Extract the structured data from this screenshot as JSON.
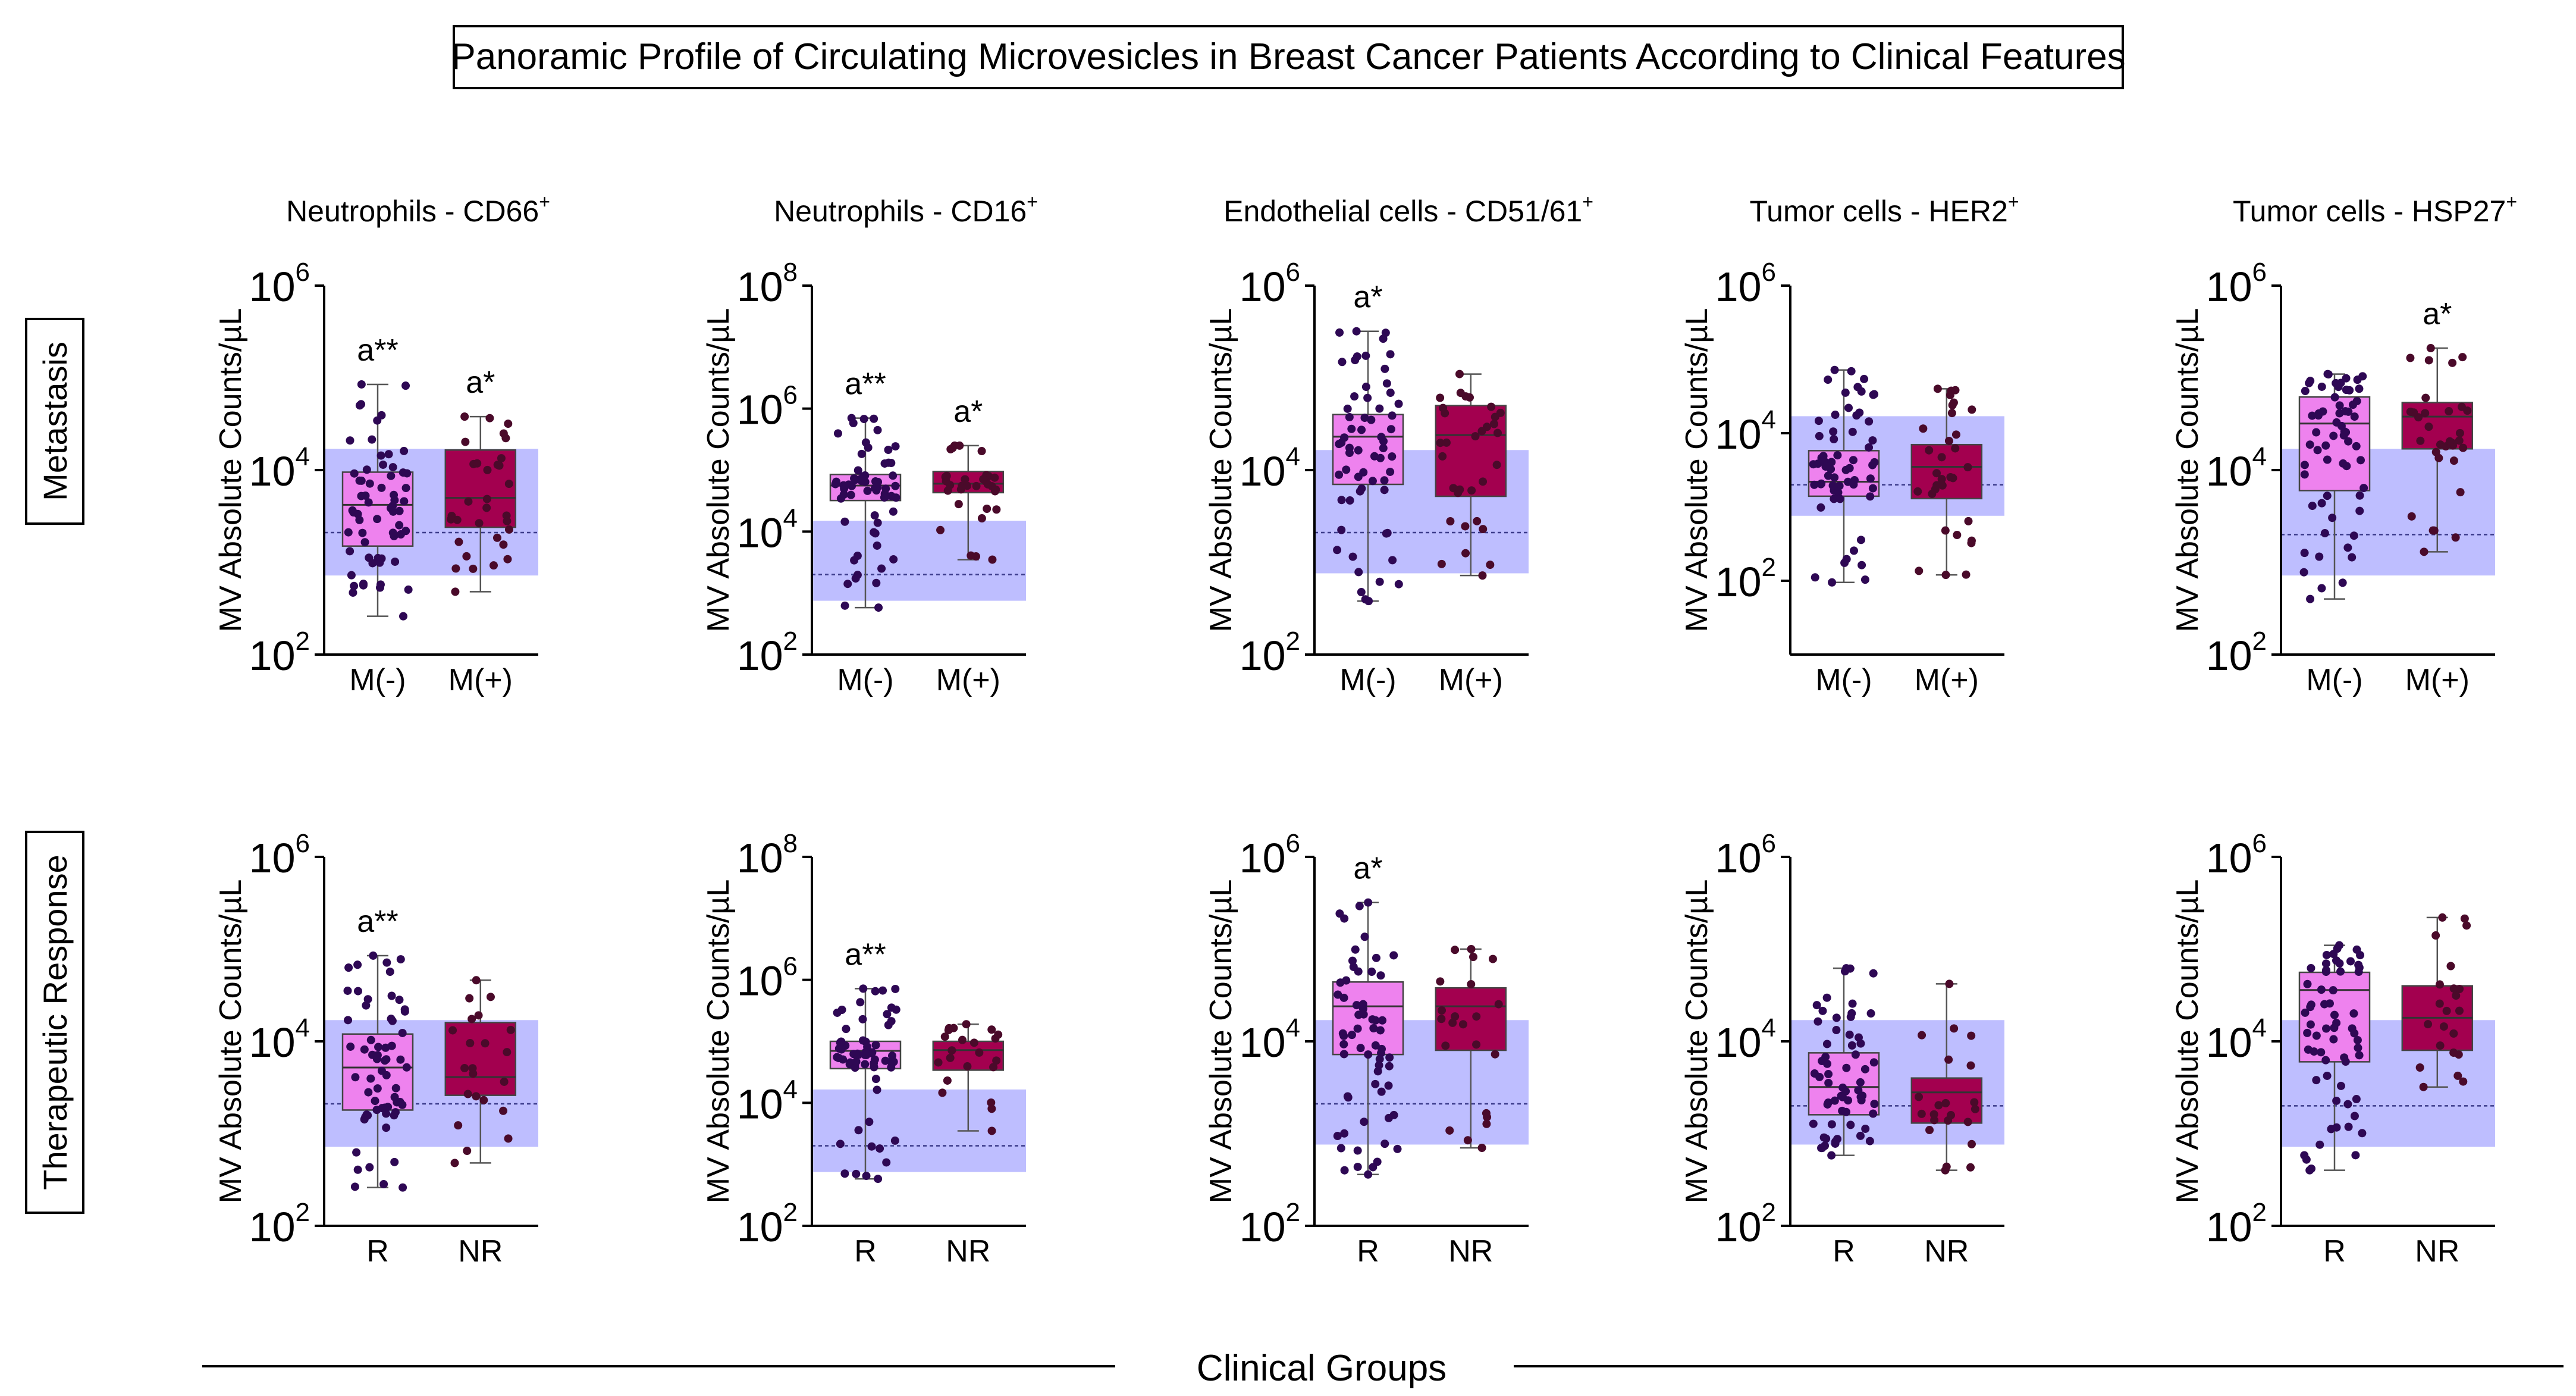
{
  "figure_title": "Panoramic Profile of Circulating Microvesicles in Breast Cancer Patients According to Clinical Features",
  "x_axis_title": "Clinical Groups",
  "rows": [
    {
      "label": "Metastasis",
      "groups": [
        "M(-)",
        "M(+)"
      ]
    },
    {
      "label": "Therapeutic Response",
      "groups": [
        "R",
        "NR"
      ]
    }
  ],
  "y_axis_label": "MV Absolute Counts/µL",
  "colors": {
    "group1_fill": "#ee82ee",
    "group2_fill": "#a3004f",
    "reference_band": "#b3b3ff",
    "dots": "#2e0854"
  },
  "chart_data": [
    {
      "type": "box",
      "row": "Metastasis",
      "panel_title": "Neutrophils - CD66",
      "panel_title_sup": "+",
      "yscale": "log10",
      "ylim_exp": [
        2,
        6
      ],
      "tick_exps": [
        2,
        4,
        6
      ],
      "reference_range": {
        "low": 720,
        "high": 17000,
        "median": 2100
      },
      "series": [
        {
          "name": "M(-)",
          "min": 260,
          "q1": 1500,
          "median": 4200,
          "q3": 9500,
          "max": 85000,
          "n": 62,
          "annotation": "a**"
        },
        {
          "name": "M(+)",
          "min": 480,
          "q1": 2400,
          "median": 5000,
          "q3": 16500,
          "max": 38000,
          "n": 32,
          "annotation": "a*"
        }
      ]
    },
    {
      "type": "box",
      "row": "Metastasis",
      "panel_title": "Neutrophils - CD16",
      "panel_title_sup": "+",
      "yscale": "log10",
      "ylim_exp": [
        2,
        8
      ],
      "tick_exps": [
        2,
        4,
        6,
        8
      ],
      "reference_range": {
        "low": 750,
        "high": 15000,
        "median": 2000
      },
      "series": [
        {
          "name": "M(-)",
          "min": 580,
          "q1": 32000,
          "median": 56000,
          "q3": 85000,
          "max": 700000,
          "n": 62,
          "annotation": "a**"
        },
        {
          "name": "M(+)",
          "min": 3500,
          "q1": 43000,
          "median": 60000,
          "q3": 95000,
          "max": 250000,
          "n": 32,
          "annotation": "a*"
        }
      ]
    },
    {
      "type": "box",
      "row": "Metastasis",
      "panel_title": "Endothelial cells - CD51/61",
      "panel_title_sup": "+",
      "yscale": "log10",
      "ylim_exp": [
        2,
        6
      ],
      "tick_exps": [
        2,
        4,
        6
      ],
      "reference_range": {
        "low": 760,
        "high": 16500,
        "median": 2100
      },
      "series": [
        {
          "name": "M(-)",
          "min": 380,
          "q1": 7000,
          "median": 23000,
          "q3": 40000,
          "max": 320000,
          "n": 62,
          "annotation": "a*"
        },
        {
          "name": "M(+)",
          "min": 720,
          "q1": 5200,
          "median": 24000,
          "q3": 50000,
          "max": 110000,
          "n": 32,
          "annotation": ""
        }
      ]
    },
    {
      "type": "box",
      "row": "Metastasis",
      "panel_title": "Tumor cells - HER2",
      "panel_title_sup": "+",
      "yscale": "log10",
      "ylim_exp": [
        1,
        6
      ],
      "tick_exps": [
        2,
        4,
        6
      ],
      "reference_range": {
        "low": 760,
        "high": 17000,
        "median": 2000
      },
      "series": [
        {
          "name": "M(-)",
          "min": 95,
          "q1": 1400,
          "median": 2200,
          "q3": 5800,
          "max": 72000,
          "n": 62,
          "annotation": ""
        },
        {
          "name": "M(+)",
          "min": 120,
          "q1": 1300,
          "median": 3500,
          "q3": 7000,
          "max": 40000,
          "n": 32,
          "annotation": ""
        }
      ]
    },
    {
      "type": "box",
      "row": "Metastasis",
      "panel_title": "Tumor cells - HSP27",
      "panel_title_sup": "+",
      "yscale": "log10",
      "ylim_exp": [
        2,
        6
      ],
      "tick_exps": [
        2,
        4,
        6
      ],
      "reference_range": {
        "low": 720,
        "high": 17000,
        "median": 2000
      },
      "series": [
        {
          "name": "M(-)",
          "min": 400,
          "q1": 6000,
          "median": 32000,
          "q3": 62000,
          "max": 110000,
          "n": 62,
          "annotation": ""
        },
        {
          "name": "M(+)",
          "min": 1300,
          "q1": 17000,
          "median": 38000,
          "q3": 54000,
          "max": 210000,
          "n": 32,
          "annotation": "a*"
        }
      ]
    },
    {
      "type": "box",
      "row": "Therapeutic Response",
      "panel_title": "",
      "panel_title_sup": "",
      "yscale": "log10",
      "ylim_exp": [
        2,
        6
      ],
      "tick_exps": [
        2,
        4,
        6
      ],
      "reference_range": {
        "low": 720,
        "high": 17000,
        "median": 2100
      },
      "series": [
        {
          "name": "R",
          "min": 260,
          "q1": 1800,
          "median": 5200,
          "q3": 12000,
          "max": 85000,
          "n": 62,
          "annotation": "a**"
        },
        {
          "name": "NR",
          "min": 480,
          "q1": 2600,
          "median": 4100,
          "q3": 16000,
          "max": 46000,
          "n": 22,
          "annotation": ""
        }
      ]
    },
    {
      "type": "box",
      "row": "Therapeutic Response",
      "panel_title": "",
      "panel_title_sup": "",
      "yscale": "log10",
      "ylim_exp": [
        2,
        8
      ],
      "tick_exps": [
        2,
        4,
        6,
        8
      ],
      "reference_range": {
        "low": 750,
        "high": 16500,
        "median": 2000
      },
      "series": [
        {
          "name": "R",
          "min": 580,
          "q1": 36000,
          "median": 70000,
          "q3": 100000,
          "max": 720000,
          "n": 62,
          "annotation": "a**"
        },
        {
          "name": "NR",
          "min": 3500,
          "q1": 34000,
          "median": 72000,
          "q3": 100000,
          "max": 190000,
          "n": 22,
          "annotation": ""
        }
      ]
    },
    {
      "type": "box",
      "row": "Therapeutic Response",
      "panel_title": "",
      "panel_title_sup": "",
      "yscale": "log10",
      "ylim_exp": [
        2,
        6
      ],
      "tick_exps": [
        2,
        4,
        6
      ],
      "reference_range": {
        "low": 760,
        "high": 17000,
        "median": 2100
      },
      "series": [
        {
          "name": "R",
          "min": 360,
          "q1": 7200,
          "median": 24000,
          "q3": 44000,
          "max": 320000,
          "n": 62,
          "annotation": "a*"
        },
        {
          "name": "NR",
          "min": 700,
          "q1": 8000,
          "median": 24000,
          "q3": 38000,
          "max": 100000,
          "n": 22,
          "annotation": ""
        }
      ]
    },
    {
      "type": "box",
      "row": "Therapeutic Response",
      "panel_title": "",
      "panel_title_sup": "",
      "yscale": "log10",
      "ylim_exp": [
        2,
        6
      ],
      "tick_exps": [
        2,
        4,
        6
      ],
      "reference_range": {
        "low": 760,
        "high": 17000,
        "median": 2000
      },
      "series": [
        {
          "name": "R",
          "min": 580,
          "q1": 1600,
          "median": 3200,
          "q3": 7500,
          "max": 62000,
          "n": 62,
          "annotation": ""
        },
        {
          "name": "NR",
          "min": 400,
          "q1": 1300,
          "median": 2800,
          "q3": 4000,
          "max": 42000,
          "n": 22,
          "annotation": ""
        }
      ]
    },
    {
      "type": "box",
      "row": "Therapeutic Response",
      "panel_title": "",
      "panel_title_sup": "",
      "yscale": "log10",
      "ylim_exp": [
        2,
        6
      ],
      "tick_exps": [
        2,
        4,
        6
      ],
      "reference_range": {
        "low": 720,
        "high": 17000,
        "median": 2000
      },
      "series": [
        {
          "name": "R",
          "min": 400,
          "q1": 6000,
          "median": 36000,
          "q3": 56000,
          "max": 110000,
          "n": 62,
          "annotation": ""
        },
        {
          "name": "NR",
          "min": 3200,
          "q1": 8000,
          "median": 18000,
          "q3": 40000,
          "max": 220000,
          "n": 22,
          "annotation": ""
        }
      ]
    }
  ]
}
